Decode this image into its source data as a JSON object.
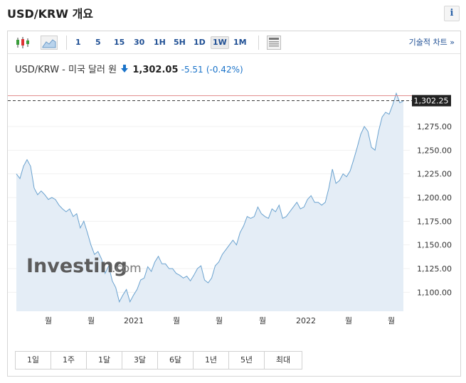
{
  "header": {
    "title": "USD/KRW 개요",
    "info_label": "i"
  },
  "toolbar": {
    "periods": [
      "1",
      "5",
      "15",
      "30",
      "1H",
      "5H",
      "1D",
      "1W",
      "1M"
    ],
    "active_period": "1W",
    "advanced_chart": "기술적 차트 »"
  },
  "quote": {
    "name": "USD/KRW - 미국 달러 원",
    "price": "1,302.05",
    "change": "-5.51",
    "change_pct": "(-0.42%)",
    "direction": "down",
    "change_color": "#1a73c9"
  },
  "watermark": {
    "brand": "Investing",
    "suffix": ".com"
  },
  "ranges": [
    "1일",
    "1주",
    "1달",
    "3달",
    "6달",
    "1년",
    "5년",
    "최대"
  ],
  "chart_data": {
    "type": "area",
    "title": "",
    "xlabel": "",
    "ylabel": "",
    "ylim": [
      1080,
      1320
    ],
    "y_ticks": [
      "1,100.00",
      "1,125.00",
      "1,150.00",
      "1,175.00",
      "1,200.00",
      "1,225.00",
      "1,250.00",
      "1,275.00"
    ],
    "y_tick_values": [
      1100,
      1125,
      1150,
      1175,
      1200,
      1225,
      1250,
      1275
    ],
    "x_ticks": [
      "월",
      "월",
      "2021",
      "월",
      "월",
      "월",
      "2022",
      "월",
      "월"
    ],
    "current_value_label": "1,302.25",
    "current_value": 1302.25,
    "reference_line": 1307.5,
    "line_color": "#6aa2cf",
    "fill_color": "#e4edf6",
    "series": [
      {
        "values": [
          1225,
          1220,
          1233,
          1240,
          1233,
          1210,
          1203,
          1207,
          1203,
          1198,
          1200,
          1198,
          1192,
          1188,
          1185,
          1188,
          1180,
          1183,
          1168,
          1175,
          1163,
          1150,
          1140,
          1143,
          1135,
          1120,
          1128,
          1112,
          1105,
          1090,
          1097,
          1103,
          1090,
          1097,
          1103,
          1113,
          1115,
          1127,
          1122,
          1132,
          1138,
          1130,
          1130,
          1125,
          1125,
          1120,
          1118,
          1115,
          1117,
          1112,
          1118,
          1125,
          1128,
          1113,
          1110,
          1115,
          1128,
          1132,
          1140,
          1145,
          1150,
          1155,
          1150,
          1163,
          1170,
          1180,
          1178,
          1180,
          1190,
          1183,
          1180,
          1178,
          1188,
          1185,
          1192,
          1178,
          1180,
          1185,
          1190,
          1195,
          1188,
          1190,
          1198,
          1202,
          1195,
          1195,
          1192,
          1195,
          1210,
          1230,
          1215,
          1218,
          1225,
          1222,
          1228,
          1240,
          1253,
          1267,
          1275,
          1270,
          1253,
          1250,
          1270,
          1285,
          1290,
          1288,
          1298,
          1310,
          1300,
          1302
        ]
      }
    ]
  }
}
